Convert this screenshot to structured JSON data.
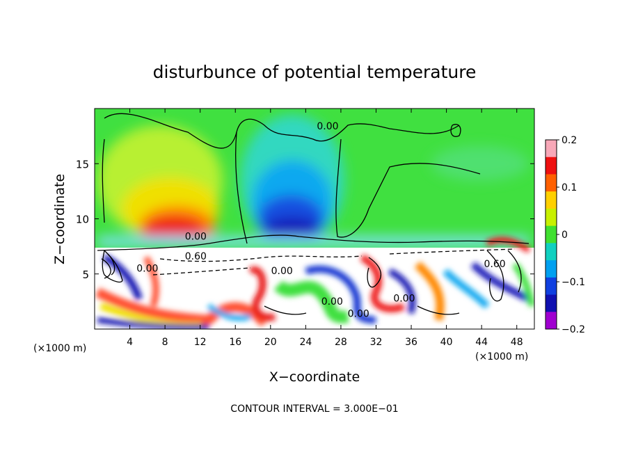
{
  "chart_data": {
    "type": "heatmap",
    "title": "disturbunce of potential temperature",
    "xlabel": "X−coordinate",
    "ylabel": "Z−coordinate",
    "x_unit_left": "(×1000 m)",
    "x_unit_right": "(×1000 m)",
    "footer": "CONTOUR INTERVAL = 3.000E−01",
    "xlim": [
      0,
      50
    ],
    "ylim": [
      0,
      20
    ],
    "x_ticks": [
      4,
      8,
      12,
      16,
      20,
      24,
      28,
      32,
      36,
      40,
      44,
      48
    ],
    "y_ticks": [
      5,
      10,
      15
    ],
    "colorbar": {
      "range": [
        -0.2,
        0.2
      ],
      "tick_values": [
        0.2,
        0.1,
        0,
        -0.1,
        -0.2
      ],
      "tick_labels": [
        "0.2",
        "0.1",
        "0",
        "−0.1",
        "−0.2"
      ],
      "colors": [
        "#f8a8b8",
        "#ee1010",
        "#ff6000",
        "#ffd000",
        "#c8f000",
        "#40e030",
        "#10d0c0",
        "#00a0f0",
        "#1040e0",
        "#1010b0",
        "#a000d0"
      ]
    },
    "contour_labels": [
      {
        "text": "0.00",
        "x": 26.5,
        "z": 18.1
      },
      {
        "text": "0.00",
        "x": 11.5,
        "z": 8.1
      },
      {
        "text": "0.60",
        "x": 11.5,
        "z": 6.3
      },
      {
        "text": "0.00",
        "x": 27.0,
        "z": 2.2
      },
      {
        "text": "0.00",
        "x": 30.0,
        "z": 1.1
      },
      {
        "text": "0.00",
        "x": 35.2,
        "z": 2.5
      },
      {
        "text": "0.00",
        "x": 6.0,
        "z": 5.2
      },
      {
        "text": "0.00",
        "x": 21.3,
        "z": 5.0
      },
      {
        "text": "0.60",
        "x": 45.5,
        "z": 5.6
      }
    ],
    "fields": {
      "positive_anomaly": {
        "x_range": [
          6,
          14
        ],
        "z_range": [
          8,
          13
        ],
        "peak": 0.15
      },
      "negative_anomaly": {
        "x_range": [
          18,
          27
        ],
        "z_range": [
          8,
          16
        ],
        "peak": -0.15
      },
      "inversion_layer_z": 7.5
    }
  }
}
